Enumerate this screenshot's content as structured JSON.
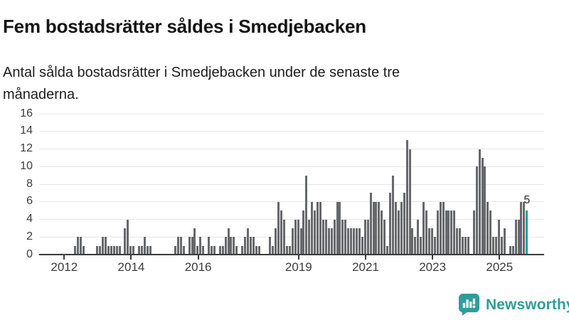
{
  "header": {
    "title": "Fem bostadsrätter såldes i Smedjebacken",
    "subtitle": "Antal sålda bostadsrätter i Smedjebacken under de senaste tre månaderna."
  },
  "chart_data": {
    "type": "bar",
    "title": "Fem bostadsrätter såldes i Smedjebacken",
    "subtitle": "Antal sålda bostadsrätter i Smedjebacken under de senaste tre månaderna.",
    "frequency": "monthly",
    "start_month": "2011-04",
    "end_month": "2025-10",
    "values": [
      0,
      0,
      0,
      0,
      0,
      0,
      0,
      0,
      0,
      0,
      0,
      0,
      1,
      2,
      2,
      1,
      0,
      0,
      0,
      0,
      1,
      1,
      2,
      2,
      1,
      1,
      1,
      1,
      1,
      0,
      3,
      4,
      1,
      1,
      0,
      1,
      1,
      2,
      1,
      1,
      0,
      0,
      0,
      0,
      0,
      0,
      0,
      0,
      1,
      2,
      2,
      1,
      0,
      2,
      2,
      3,
      1,
      2,
      1,
      0,
      2,
      1,
      1,
      0,
      1,
      1,
      2,
      3,
      2,
      2,
      1,
      0,
      1,
      2,
      3,
      2,
      2,
      1,
      1,
      0,
      0,
      0,
      2,
      1,
      3,
      6,
      5,
      4,
      1,
      1,
      3,
      4,
      4,
      3,
      5,
      9,
      4,
      6,
      5,
      6,
      6,
      4,
      4,
      3,
      3,
      4,
      6,
      6,
      4,
      4,
      3,
      3,
      3,
      3,
      3,
      2,
      4,
      4,
      7,
      6,
      6,
      6,
      5,
      4,
      1,
      7,
      9,
      6,
      5,
      6,
      7,
      13,
      12,
      3,
      2,
      4,
      2,
      6,
      5,
      3,
      3,
      2,
      5,
      6,
      6,
      5,
      5,
      5,
      5,
      3,
      3,
      2,
      2,
      2,
      0,
      5,
      10,
      12,
      11,
      10,
      6,
      5,
      2,
      2,
      4,
      2,
      3,
      0,
      1,
      1,
      4,
      4,
      6,
      6,
      5
    ],
    "ylim": [
      0,
      16
    ],
    "yticks": [
      0,
      2,
      4,
      6,
      8,
      10,
      12,
      14,
      16
    ],
    "xticks": [
      {
        "label": "2012",
        "month_index": 9
      },
      {
        "label": "2014",
        "month_index": 33
      },
      {
        "label": "2016",
        "month_index": 57
      },
      {
        "label": "2019",
        "month_index": 93
      },
      {
        "label": "2021",
        "month_index": 117
      },
      {
        "label": "2023",
        "month_index": 141
      },
      {
        "label": "2025",
        "month_index": 165
      }
    ],
    "bar_color": "#67686c",
    "highlight_color": "#00a49e",
    "highlight_index": 174,
    "annotation": {
      "text": "5",
      "bar_index": 174
    },
    "grid": "horizontal",
    "legend": "none"
  },
  "footer": {
    "brand_name": "Newsworthy",
    "brand_color": "#2f9d9b",
    "icon": "newsworthy-logo-icon"
  }
}
